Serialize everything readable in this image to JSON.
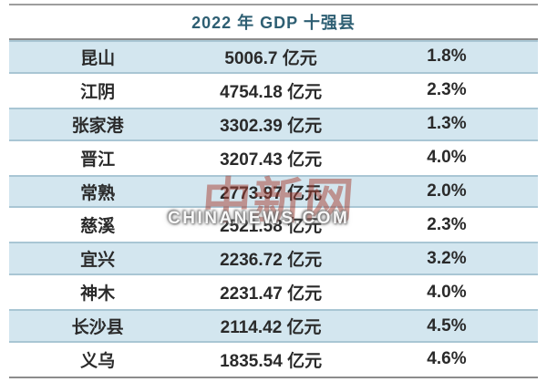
{
  "chart_data": {
    "type": "table",
    "title": "2022 年 GDP 十强县",
    "rows": [
      {
        "name": "昆山",
        "gdp": "5006.7 亿元",
        "growth": "1.8%",
        "gdp_value": 5006.7,
        "growth_percent": 1.8
      },
      {
        "name": "江阴",
        "gdp": "4754.18 亿元",
        "growth": "2.3%",
        "gdp_value": 4754.18,
        "growth_percent": 2.3
      },
      {
        "name": "张家港",
        "gdp": "3302.39 亿元",
        "growth": "1.3%",
        "gdp_value": 3302.39,
        "growth_percent": 1.3
      },
      {
        "name": "晋江",
        "gdp": "3207.43 亿元",
        "growth": "4.0%",
        "gdp_value": 3207.43,
        "growth_percent": 4.0
      },
      {
        "name": "常熟",
        "gdp": "2773.97 亿元",
        "growth": "2.0%",
        "gdp_value": 2773.97,
        "growth_percent": 2.0
      },
      {
        "name": "慈溪",
        "gdp": "2521.58 亿元",
        "growth": "2.3%",
        "gdp_value": 2521.58,
        "growth_percent": 2.3
      },
      {
        "name": "宜兴",
        "gdp": "2236.72 亿元",
        "growth": "3.2%",
        "gdp_value": 2236.72,
        "growth_percent": 3.2
      },
      {
        "name": "神木",
        "gdp": "2231.47 亿元",
        "growth": "4.0%",
        "gdp_value": 2231.47,
        "growth_percent": 4.0
      },
      {
        "name": "长沙县",
        "gdp": "2114.42 亿元",
        "growth": "4.5%",
        "gdp_value": 2114.42,
        "growth_percent": 4.5
      },
      {
        "name": "义乌",
        "gdp": "1835.54 亿元",
        "growth": "4.6%",
        "gdp_value": 1835.54,
        "growth_percent": 4.6
      }
    ],
    "units": "亿元",
    "layout": {
      "highlight_rows": "odd ranks (1,3,5,7,9)",
      "columns": 3,
      "grid": "horizontal rules above/below title and at bottom"
    }
  },
  "watermark": {
    "logo": "中新网",
    "site": "CHINANEWS.COM"
  },
  "colors": {
    "row_highlight": "#d3e6ef",
    "row_border": "#a9c6d4",
    "title_text": "#2e5f73",
    "body_text": "#2a2a2a",
    "rule_gray": "#8c8c8c",
    "watermark_red": "#a83e32"
  }
}
